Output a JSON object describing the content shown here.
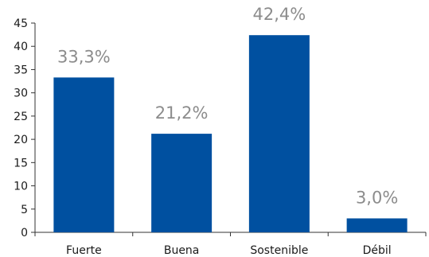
{
  "chart_data": {
    "type": "bar",
    "categories": [
      "Fuerte",
      "Buena",
      "Sostenible",
      "Débil"
    ],
    "values": [
      33.3,
      21.2,
      42.4,
      3.0
    ],
    "data_labels": [
      "33,3%",
      "21,2%",
      "42,4%",
      "3,0%"
    ],
    "y_ticks": [
      "0",
      "5",
      "10",
      "15",
      "20",
      "25",
      "30",
      "35",
      "40",
      "45"
    ],
    "y_tick_values": [
      0,
      5,
      10,
      15,
      20,
      25,
      30,
      35,
      40,
      45
    ],
    "ylim": [
      0,
      45
    ],
    "grid": false,
    "legend": "none",
    "title": "",
    "xlabel": "",
    "ylabel": ""
  },
  "colors": {
    "bar": "#0050a0",
    "data_label": "#8c8c8c",
    "axis": "#333333"
  }
}
